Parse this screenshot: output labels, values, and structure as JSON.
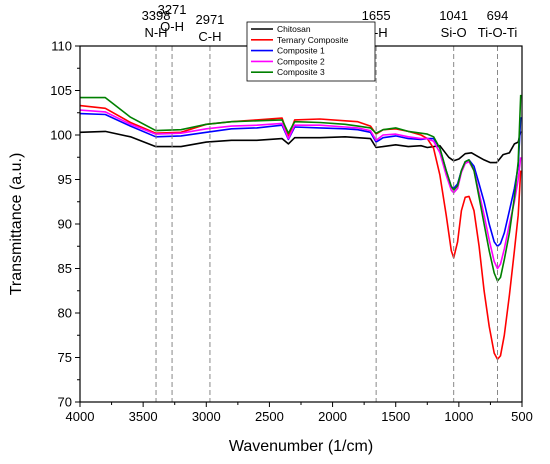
{
  "chart_data": {
    "type": "line",
    "xlabel": "Wavenumber (1/cm)",
    "ylabel": "Transmittance (a.u.)",
    "xlim": [
      4000,
      500
    ],
    "ylim": [
      70,
      110
    ],
    "x_reversed": true,
    "x_ticks": [
      4000,
      3500,
      3000,
      2500,
      2000,
      1500,
      1000,
      500
    ],
    "y_ticks": [
      70,
      75,
      80,
      85,
      90,
      95,
      100,
      105,
      110
    ],
    "grid": false,
    "legend_position": "top-center",
    "annotations": [
      {
        "x": 3398,
        "number": "3398",
        "group": "N-H"
      },
      {
        "x": 3271,
        "number": "3271",
        "group": "O-H"
      },
      {
        "x": 2971,
        "number": "2971",
        "group": "C-H"
      },
      {
        "x": 1655,
        "number": "1655",
        "group": "N-H"
      },
      {
        "x": 1041,
        "number": "1041",
        "group": "Si-O"
      },
      {
        "x": 694,
        "number": "694",
        "group": "Ti-O-Ti"
      }
    ],
    "series": [
      {
        "name": "Chitosan",
        "color": "#000000",
        "points": [
          [
            4000,
            100.3
          ],
          [
            3800,
            100.4
          ],
          [
            3600,
            99.8
          ],
          [
            3400,
            98.7
          ],
          [
            3200,
            98.7
          ],
          [
            3000,
            99.2
          ],
          [
            2800,
            99.4
          ],
          [
            2600,
            99.4
          ],
          [
            2400,
            99.6
          ],
          [
            2350,
            99.0
          ],
          [
            2300,
            99.7
          ],
          [
            2100,
            99.7
          ],
          [
            1900,
            99.8
          ],
          [
            1800,
            99.7
          ],
          [
            1700,
            99.6
          ],
          [
            1655,
            98.6
          ],
          [
            1600,
            98.7
          ],
          [
            1500,
            98.9
          ],
          [
            1400,
            98.7
          ],
          [
            1300,
            98.8
          ],
          [
            1250,
            98.6
          ],
          [
            1150,
            98.8
          ],
          [
            1080,
            97.5
          ],
          [
            1041,
            97.1
          ],
          [
            1000,
            97.3
          ],
          [
            950,
            97.9
          ],
          [
            900,
            98.0
          ],
          [
            850,
            97.6
          ],
          [
            800,
            97.2
          ],
          [
            750,
            96.9
          ],
          [
            700,
            96.9
          ],
          [
            650,
            97.8
          ],
          [
            600,
            98.0
          ],
          [
            560,
            99.0
          ],
          [
            530,
            99.2
          ],
          [
            510,
            100.4
          ]
        ]
      },
      {
        "name": "Ternary Composite",
        "color": "#ff0000",
        "points": [
          [
            4000,
            103.3
          ],
          [
            3800,
            103.0
          ],
          [
            3600,
            101.4
          ],
          [
            3400,
            100.2
          ],
          [
            3200,
            100.3
          ],
          [
            3000,
            101.2
          ],
          [
            2800,
            101.5
          ],
          [
            2600,
            101.7
          ],
          [
            2400,
            101.9
          ],
          [
            2350,
            99.8
          ],
          [
            2300,
            101.7
          ],
          [
            2100,
            101.8
          ],
          [
            1900,
            101.6
          ],
          [
            1800,
            101.5
          ],
          [
            1700,
            101.0
          ],
          [
            1655,
            100.1
          ],
          [
            1600,
            100.6
          ],
          [
            1500,
            100.7
          ],
          [
            1400,
            100.4
          ],
          [
            1300,
            100.0
          ],
          [
            1250,
            99.6
          ],
          [
            1200,
            98.5
          ],
          [
            1150,
            95.5
          ],
          [
            1100,
            91.0
          ],
          [
            1060,
            87.0
          ],
          [
            1041,
            86.2
          ],
          [
            1010,
            88.0
          ],
          [
            980,
            91.5
          ],
          [
            950,
            93.0
          ],
          [
            920,
            93.1
          ],
          [
            880,
            91.5
          ],
          [
            840,
            87.5
          ],
          [
            800,
            82.5
          ],
          [
            760,
            78.5
          ],
          [
            720,
            75.5
          ],
          [
            694,
            74.8
          ],
          [
            670,
            75.2
          ],
          [
            640,
            77.5
          ],
          [
            600,
            82.0
          ],
          [
            560,
            87.0
          ],
          [
            530,
            91.0
          ],
          [
            510,
            96.0
          ]
        ]
      },
      {
        "name": "Composite 1",
        "color": "#0000ff",
        "points": [
          [
            4000,
            102.4
          ],
          [
            3800,
            102.3
          ],
          [
            3600,
            101.0
          ],
          [
            3400,
            99.8
          ],
          [
            3200,
            99.9
          ],
          [
            3000,
            100.3
          ],
          [
            2800,
            100.7
          ],
          [
            2600,
            100.8
          ],
          [
            2400,
            101.1
          ],
          [
            2350,
            99.5
          ],
          [
            2300,
            100.9
          ],
          [
            2100,
            100.8
          ],
          [
            1900,
            100.7
          ],
          [
            1800,
            100.6
          ],
          [
            1700,
            100.3
          ],
          [
            1655,
            99.2
          ],
          [
            1600,
            99.7
          ],
          [
            1500,
            99.9
          ],
          [
            1400,
            99.6
          ],
          [
            1300,
            99.5
          ],
          [
            1250,
            99.6
          ],
          [
            1200,
            99.6
          ],
          [
            1150,
            98.5
          ],
          [
            1100,
            96.0
          ],
          [
            1060,
            94.2
          ],
          [
            1041,
            94.0
          ],
          [
            1010,
            94.5
          ],
          [
            980,
            96.0
          ],
          [
            950,
            97.0
          ],
          [
            920,
            97.2
          ],
          [
            880,
            96.5
          ],
          [
            840,
            94.5
          ],
          [
            800,
            92.5
          ],
          [
            760,
            90.0
          ],
          [
            720,
            88.0
          ],
          [
            694,
            87.5
          ],
          [
            670,
            87.8
          ],
          [
            640,
            89.0
          ],
          [
            600,
            91.5
          ],
          [
            560,
            94.0
          ],
          [
            530,
            96.5
          ],
          [
            510,
            102.0
          ]
        ]
      },
      {
        "name": "Composite 2",
        "color": "#ff00ff",
        "points": [
          [
            4000,
            102.8
          ],
          [
            3800,
            102.6
          ],
          [
            3600,
            101.2
          ],
          [
            3400,
            100.1
          ],
          [
            3200,
            100.2
          ],
          [
            3000,
            100.7
          ],
          [
            2800,
            101.0
          ],
          [
            2600,
            101.1
          ],
          [
            2400,
            101.3
          ],
          [
            2350,
            99.6
          ],
          [
            2300,
            101.1
          ],
          [
            2100,
            101.1
          ],
          [
            1900,
            100.9
          ],
          [
            1800,
            100.8
          ],
          [
            1700,
            100.5
          ],
          [
            1655,
            99.4
          ],
          [
            1600,
            100.0
          ],
          [
            1500,
            100.1
          ],
          [
            1400,
            99.8
          ],
          [
            1300,
            99.6
          ],
          [
            1250,
            99.6
          ],
          [
            1200,
            99.3
          ],
          [
            1150,
            98.0
          ],
          [
            1100,
            95.5
          ],
          [
            1060,
            93.8
          ],
          [
            1041,
            93.5
          ],
          [
            1010,
            94.0
          ],
          [
            980,
            95.8
          ],
          [
            950,
            96.8
          ],
          [
            920,
            97.0
          ],
          [
            880,
            96.0
          ],
          [
            840,
            93.5
          ],
          [
            800,
            91.0
          ],
          [
            760,
            88.2
          ],
          [
            720,
            85.8
          ],
          [
            694,
            85.0
          ],
          [
            670,
            85.5
          ],
          [
            640,
            87.2
          ],
          [
            600,
            90.0
          ],
          [
            560,
            92.5
          ],
          [
            530,
            95.0
          ],
          [
            510,
            97.5
          ]
        ]
      },
      {
        "name": "Composite 3",
        "color": "#008000",
        "points": [
          [
            4000,
            104.2
          ],
          [
            3800,
            104.2
          ],
          [
            3600,
            102.0
          ],
          [
            3400,
            100.5
          ],
          [
            3200,
            100.6
          ],
          [
            3000,
            101.2
          ],
          [
            2800,
            101.5
          ],
          [
            2600,
            101.6
          ],
          [
            2400,
            101.7
          ],
          [
            2350,
            100.2
          ],
          [
            2300,
            101.5
          ],
          [
            2100,
            101.4
          ],
          [
            1900,
            101.2
          ],
          [
            1800,
            101.0
          ],
          [
            1700,
            100.8
          ],
          [
            1655,
            100.2
          ],
          [
            1600,
            100.6
          ],
          [
            1500,
            100.8
          ],
          [
            1400,
            100.4
          ],
          [
            1300,
            100.2
          ],
          [
            1250,
            100.1
          ],
          [
            1200,
            99.8
          ],
          [
            1150,
            98.5
          ],
          [
            1100,
            96.0
          ],
          [
            1060,
            94.2
          ],
          [
            1041,
            93.8
          ],
          [
            1010,
            94.3
          ],
          [
            980,
            96.0
          ],
          [
            950,
            97.0
          ],
          [
            920,
            97.2
          ],
          [
            880,
            96.0
          ],
          [
            840,
            93.0
          ],
          [
            800,
            90.0
          ],
          [
            760,
            87.0
          ],
          [
            720,
            84.5
          ],
          [
            694,
            83.6
          ],
          [
            670,
            84.0
          ],
          [
            640,
            86.0
          ],
          [
            600,
            89.0
          ],
          [
            560,
            93.0
          ],
          [
            530,
            97.0
          ],
          [
            510,
            104.5
          ]
        ]
      }
    ]
  }
}
